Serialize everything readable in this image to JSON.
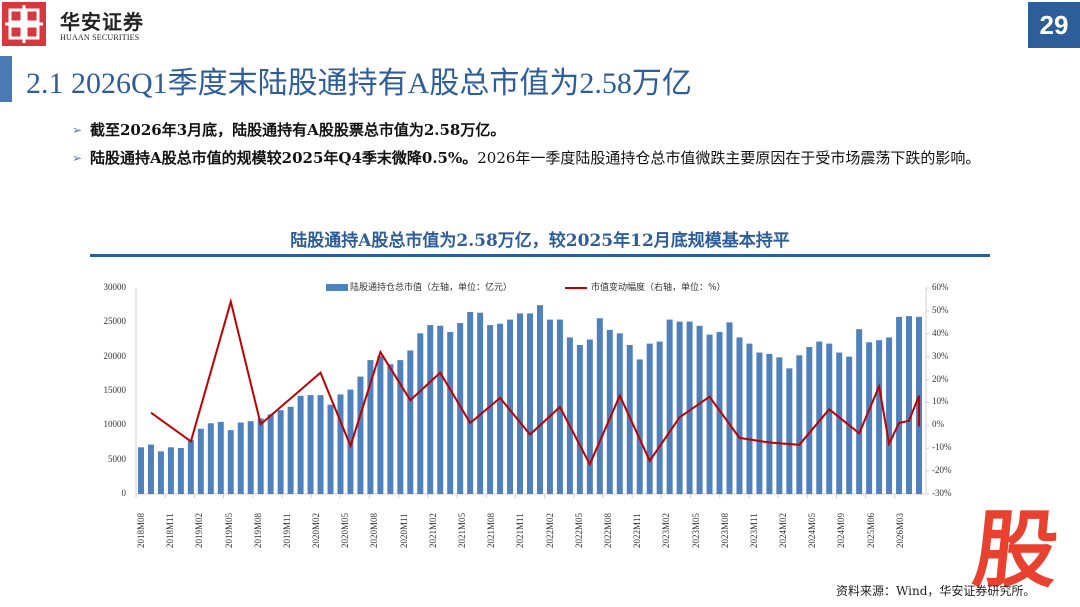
{
  "header": {
    "brand_cn": "华安证券",
    "brand_en": "HUAAN SECURITIES",
    "page_number": "29"
  },
  "slide": {
    "title": "2.1 2026Q1季度末陆股通持有A股总市值为2.58万亿",
    "bullets": [
      {
        "bold": "截至2026年3月底，陆股通持有A股股票总市值为2.58万亿。",
        "normal": ""
      },
      {
        "bold": "陆股通持A股总市值的规模较2025年Q4季末微降0.5%。",
        "normal": "2026年一季度陆股通持仓总市值微跌主要原因在于受市场震荡下跌的影响。"
      }
    ],
    "bullet_icon": "arrow-right-icon",
    "chart_heading": "陆股通持A股总市值为2.58万亿，较2025年12月底规模基本持平",
    "source": "资料来源：Wind，华安证券研究所。",
    "watermark": "股"
  },
  "colors": {
    "brand_red": "#d9363e",
    "title_blue": "#2e5e9a",
    "bar_blue": "#4f81bd",
    "line_red": "#c00000",
    "watermark_red": "#e8412f"
  },
  "chart_data": {
    "type": "bar",
    "title": "陆股通持A股总市值为2.58万亿，较2025年12月底规模基本持平",
    "legend": [
      "陆股通持仓总市值（左轴，单位：亿元）",
      "市值变动幅度（右轴，单位：%）"
    ],
    "legend_position": "top",
    "grid": false,
    "x_tick_labels": [
      "2018M08",
      "2018M11",
      "2019M02",
      "2019M05",
      "2019M08",
      "2019M11",
      "2020M02",
      "2020M05",
      "2020M08",
      "2020M11",
      "2021M02",
      "2021M05",
      "2021M08",
      "2021M11",
      "2022M02",
      "2022M05",
      "2022M08",
      "2022M11",
      "2023M02",
      "2023M05",
      "2023M08",
      "2023M11",
      "2024M02",
      "2024M05",
      "2024M09",
      "2025M06",
      "2026M03"
    ],
    "y_left": {
      "label": "亿元",
      "ticks": [
        0,
        5000,
        10000,
        15000,
        20000,
        25000,
        30000
      ],
      "ylim": [
        0,
        30000
      ]
    },
    "y_right": {
      "label": "%",
      "ticks": [
        "-30%",
        "-20%",
        "-10%",
        "0%",
        "10%",
        "20%",
        "30%",
        "40%",
        "50%",
        "60%"
      ],
      "ylim": [
        -30,
        60
      ]
    },
    "series": [
      {
        "name": "陆股通持仓总市值（左轴，单位：亿元）",
        "type": "bar",
        "values": [
          6800,
          7200,
          6200,
          6800,
          6700,
          7900,
          9500,
          10300,
          10500,
          9300,
          10400,
          10600,
          11000,
          11600,
          12200,
          12700,
          14300,
          14400,
          14400,
          13000,
          14500,
          15200,
          17100,
          19500,
          20100,
          18900,
          19500,
          20900,
          23400,
          24600,
          24500,
          23600,
          24900,
          26500,
          26400,
          24600,
          24800,
          25400,
          26300,
          26300,
          27500,
          25400,
          25400,
          22800,
          21700,
          22500,
          25600,
          23900,
          23400,
          21700,
          19600,
          21900,
          22200,
          25400,
          25100,
          25100,
          24500,
          23200,
          23600,
          25000,
          22800,
          21900,
          20600,
          20400,
          19900,
          18300,
          20200,
          21400,
          22200,
          21900,
          20600,
          20000,
          24000,
          22100,
          22400,
          22800,
          25800,
          25900,
          25800
        ]
      },
      {
        "name": "市值变动幅度（右轴，单位：%）",
        "type": "line",
        "points": [
          {
            "i": 1,
            "v": 5.5
          },
          {
            "i": 5,
            "v": -7.0
          },
          {
            "i": 9,
            "v": 54.0
          },
          {
            "i": 12,
            "v": 0.5
          },
          {
            "i": 18,
            "v": 23.0
          },
          {
            "i": 21,
            "v": -9.0
          },
          {
            "i": 24,
            "v": 32.0
          },
          {
            "i": 27,
            "v": 11.0
          },
          {
            "i": 30,
            "v": 23.0
          },
          {
            "i": 33,
            "v": 1.0
          },
          {
            "i": 36,
            "v": 12.0
          },
          {
            "i": 39,
            "v": -4.0
          },
          {
            "i": 42,
            "v": 8.0
          },
          {
            "i": 45,
            "v": -17.0
          },
          {
            "i": 48,
            "v": 13.0
          },
          {
            "i": 51,
            "v": -15.5
          },
          {
            "i": 54,
            "v": 3.5
          },
          {
            "i": 57,
            "v": 12.5
          },
          {
            "i": 60,
            "v": -5.5
          },
          {
            "i": 63,
            "v": -7.5
          },
          {
            "i": 66,
            "v": -8.5
          },
          {
            "i": 69,
            "v": 7.0
          },
          {
            "i": 72,
            "v": -3.5
          },
          {
            "i": 74,
            "v": 17.0
          },
          {
            "i": 75,
            "v": -8.0
          },
          {
            "i": 76,
            "v": 1.0
          },
          {
            "i": 77,
            "v": 2.0
          },
          {
            "i": 78,
            "v": 13.0
          },
          {
            "i": 79,
            "v": 0.0
          },
          {
            "i": 80,
            "v": -0.5
          }
        ]
      }
    ]
  }
}
